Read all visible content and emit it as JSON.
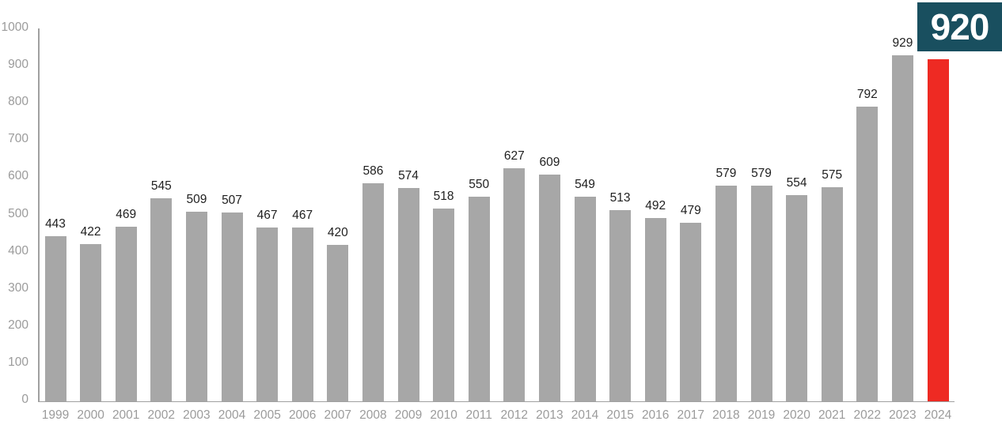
{
  "chart_data": {
    "type": "bar",
    "title": "",
    "xlabel": "",
    "ylabel": "",
    "categories": [
      "1999",
      "2000",
      "2001",
      "2002",
      "2003",
      "2004",
      "2005",
      "2006",
      "2007",
      "2008",
      "2009",
      "2010",
      "2011",
      "2012",
      "2013",
      "2014",
      "2015",
      "2016",
      "2017",
      "2018",
      "2019",
      "2020",
      "2021",
      "2022",
      "2023",
      "2024"
    ],
    "values": [
      443,
      422,
      469,
      545,
      509,
      507,
      467,
      467,
      420,
      586,
      574,
      518,
      550,
      627,
      609,
      549,
      513,
      492,
      479,
      579,
      579,
      554,
      575,
      792,
      929,
      920
    ],
    "ylim": [
      0,
      1000
    ],
    "ytick_labels": [
      "0",
      "100",
      "200",
      "300",
      "400",
      "500",
      "600",
      "700",
      "800",
      "900",
      "1000"
    ],
    "yticks": [
      0,
      100,
      200,
      300,
      400,
      500,
      600,
      700,
      800,
      900,
      1000
    ],
    "grid": false,
    "legend": null,
    "bar_color": "#a7a7a7",
    "highlight_index": 25,
    "highlight_color": "#ee2a23",
    "value_label_color": "#1f1f1f",
    "tick_label_color": "#9b9b9b",
    "axis_color": "#a0a0a0",
    "highlight_callout": {
      "value": "920",
      "background": "#194f5f",
      "text_color": "#ffffff"
    }
  }
}
